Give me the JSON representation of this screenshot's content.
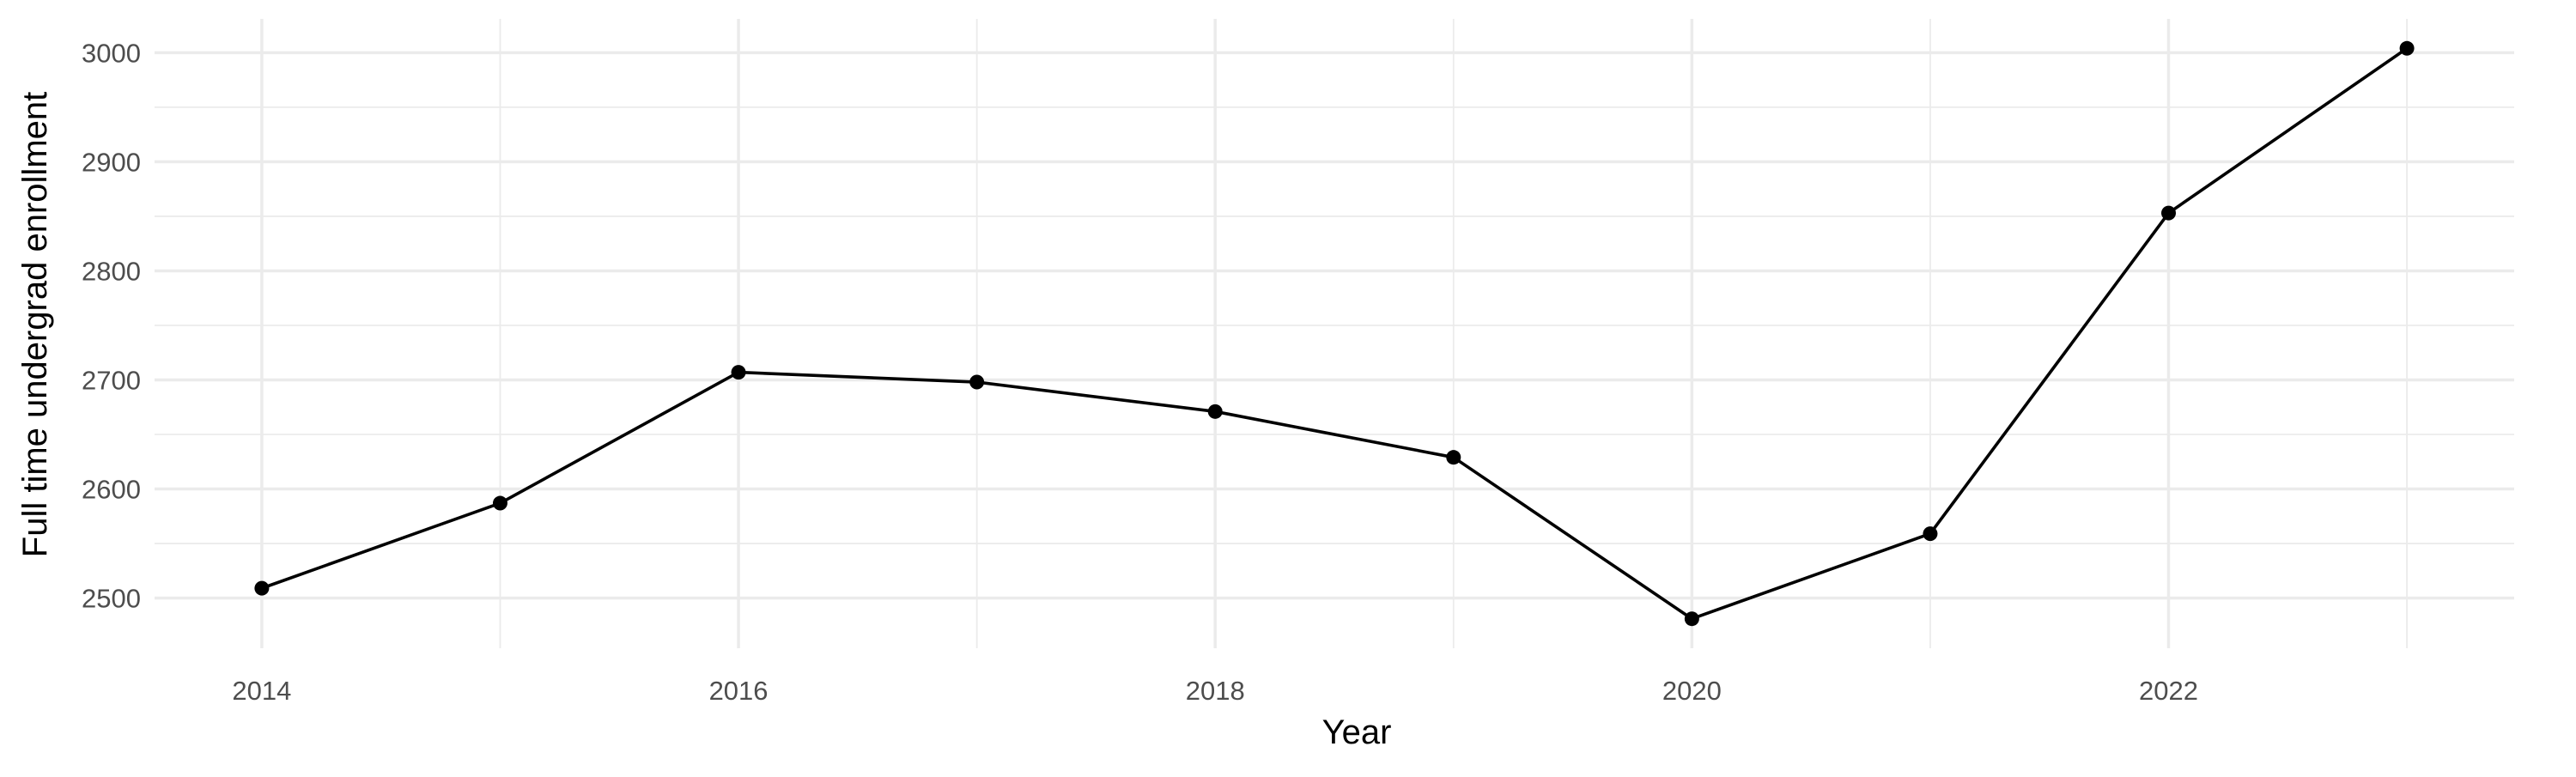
{
  "chart_data": {
    "type": "line",
    "title": "",
    "xlabel": "Year",
    "ylabel": "Full time undergrad enrollment",
    "x": [
      2014,
      2015,
      2016,
      2017,
      2018,
      2019,
      2020,
      2021,
      2022,
      2023
    ],
    "series": [
      {
        "values": [
          2509,
          2587,
          2707,
          2698,
          2671,
          2629,
          2481,
          2559,
          2853,
          3004
        ],
        "color": "#000000"
      }
    ],
    "x_ticks": [
      2014,
      2016,
      2018,
      2020,
      2022
    ],
    "y_ticks": [
      2500,
      2600,
      2700,
      2800,
      2900,
      3000
    ],
    "xlim": [
      2013.55,
      2023.45
    ],
    "ylim": [
      2454,
      3031
    ],
    "grid": true,
    "legend": "none",
    "colors": {
      "grid": "#ebebeb",
      "tick_label": "#4d4d4d",
      "series": "#000000"
    }
  }
}
